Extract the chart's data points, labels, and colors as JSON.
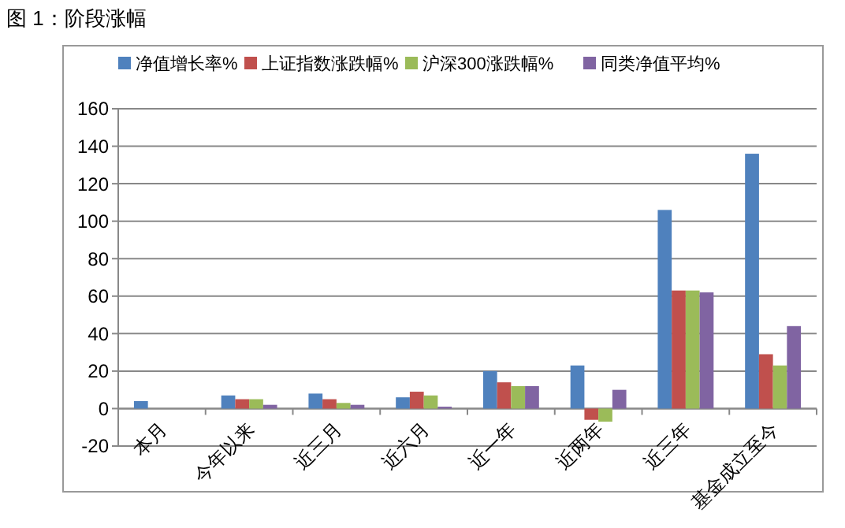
{
  "chart_data": {
    "type": "bar",
    "title": "图 1：阶段涨幅",
    "categories": [
      "本月",
      "今年以来",
      "近三月",
      "近六月",
      "近一年",
      "近两年",
      "近三年",
      "基金成立至今"
    ],
    "series": [
      {
        "name": "净值增长率%",
        "color": "#4f81bd",
        "values": [
          4,
          7,
          8,
          6,
          20,
          23,
          106,
          136
        ]
      },
      {
        "name": "上证指数涨跌幅%",
        "color": "#c0504d",
        "values": [
          null,
          5,
          5,
          9,
          14,
          -6,
          63,
          29
        ]
      },
      {
        "name": "沪深300涨跌幅%",
        "color": "#9bbb59",
        "values": [
          null,
          5,
          3,
          7,
          12,
          -7,
          63,
          23
        ]
      },
      {
        "name": "同类净值平均%",
        "color": "#8064a2",
        "values": [
          null,
          2,
          2,
          1,
          12,
          10,
          62,
          44
        ]
      }
    ],
    "ylim": [
      -20,
      160
    ],
    "yticks": [
      -20,
      0,
      20,
      40,
      60,
      80,
      100,
      120,
      140,
      160
    ],
    "grid": "y",
    "legend": "top"
  }
}
